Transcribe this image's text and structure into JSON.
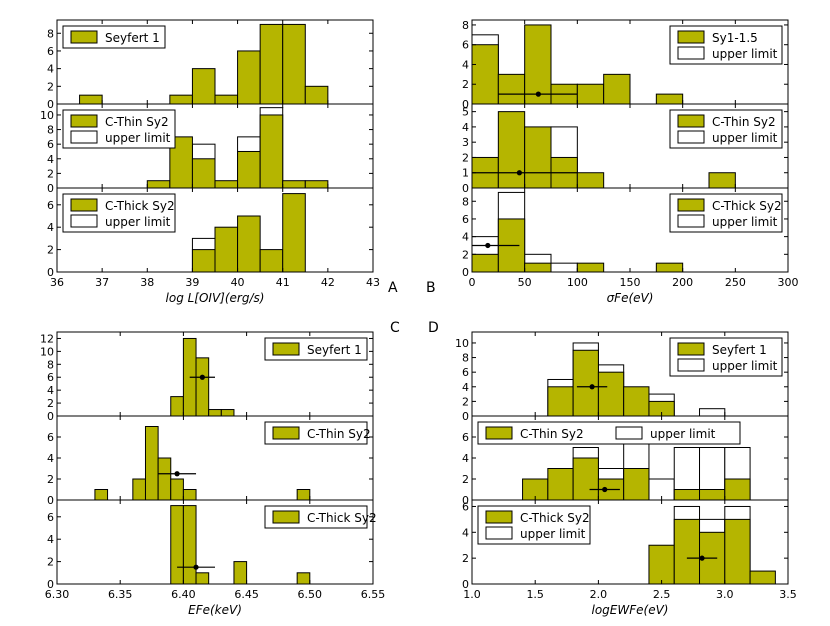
{
  "colors": {
    "fill": "#b5b500",
    "edge": "#000000",
    "upper": "#ffffff"
  },
  "panel_labels": [
    "A",
    "B",
    "C",
    "D"
  ],
  "chart_data": [
    {
      "id": "A",
      "type": "bar",
      "xlim": [
        36,
        43
      ],
      "xticks": [
        "36",
        "37",
        "38",
        "39",
        "40",
        "41",
        "42",
        "43"
      ],
      "xlabel": "log L[OIV](erg/s)",
      "subplots": [
        {
          "legend": [
            "Seyfert 1"
          ],
          "legend_pos": "top-left",
          "ylim": [
            0,
            9.5
          ],
          "yticks": [
            0,
            2,
            4,
            6,
            8
          ],
          "bins": [
            [
              36.5,
              37
            ],
            [
              37,
              37.5
            ],
            [
              37.5,
              38
            ],
            [
              38,
              38.5
            ],
            [
              38.5,
              39
            ],
            [
              39,
              39.5
            ],
            [
              39.5,
              40
            ],
            [
              40,
              40.5
            ],
            [
              40.5,
              41
            ],
            [
              41,
              41.5
            ],
            [
              41.5,
              42
            ],
            [
              42,
              42.5
            ]
          ],
          "values": [
            1,
            0,
            0,
            0,
            1,
            4,
            1,
            6,
            9,
            9,
            2,
            0
          ],
          "upper": [
            1,
            0,
            0,
            0,
            1,
            4,
            1,
            6,
            9,
            9,
            2,
            0
          ]
        },
        {
          "legend": [
            "C-Thin Sy2",
            "upper limit"
          ],
          "legend_pos": "top-left",
          "ylim": [
            0,
            11.5
          ],
          "yticks": [
            0,
            2,
            4,
            6,
            8,
            10
          ],
          "bins": [
            [
              36.5,
              37
            ],
            [
              37,
              37.5
            ],
            [
              37.5,
              38
            ],
            [
              38,
              38.5
            ],
            [
              38.5,
              39
            ],
            [
              39,
              39.5
            ],
            [
              39.5,
              40
            ],
            [
              40,
              40.5
            ],
            [
              40.5,
              41
            ],
            [
              41,
              41.5
            ],
            [
              41.5,
              42
            ],
            [
              42,
              42.5
            ]
          ],
          "values": [
            0,
            0,
            0,
            1,
            7,
            4,
            1,
            5,
            10,
            1,
            1,
            0
          ],
          "upper": [
            0,
            0,
            0,
            1,
            7,
            6,
            1,
            7,
            11,
            1,
            1,
            0
          ]
        },
        {
          "legend": [
            "C-Thick Sy2",
            "upper limit"
          ],
          "legend_pos": "top-left",
          "ylim": [
            0,
            7.5
          ],
          "yticks": [
            0,
            2,
            4,
            6
          ],
          "bins": [
            [
              39,
              39.5
            ],
            [
              39.5,
              40
            ],
            [
              40,
              40.5
            ],
            [
              40.5,
              41
            ],
            [
              41,
              41.5
            ],
            [
              41.5,
              42
            ]
          ],
          "values": [
            2,
            4,
            5,
            2,
            7,
            0
          ],
          "upper": [
            3,
            4,
            5,
            2,
            7,
            0
          ]
        }
      ]
    },
    {
      "id": "B",
      "type": "bar",
      "xlim": [
        0,
        300
      ],
      "xticks": [
        "0",
        "50",
        "100",
        "150",
        "200",
        "250",
        "300"
      ],
      "xlabel": "σFe(eV)",
      "subplots": [
        {
          "legend": [
            "Sy1-1.5",
            "upper limit"
          ],
          "legend_pos": "top-right",
          "ylim": [
            0,
            8.5
          ],
          "yticks": [
            0,
            2,
            4,
            6,
            8
          ],
          "bins": [
            [
              0,
              25
            ],
            [
              25,
              50
            ],
            [
              50,
              75
            ],
            [
              75,
              100
            ],
            [
              100,
              125
            ],
            [
              125,
              150
            ],
            [
              150,
              175
            ],
            [
              175,
              200
            ],
            [
              200,
              225
            ],
            [
              225,
              250
            ]
          ],
          "values": [
            6,
            3,
            8,
            2,
            2,
            3,
            0,
            1,
            0,
            0
          ],
          "upper": [
            7,
            3,
            8,
            2,
            2,
            3,
            0,
            1,
            0,
            0
          ],
          "errorbar": {
            "x": 63,
            "y": 1,
            "xerr": [
              25,
              100
            ]
          }
        },
        {
          "legend": [
            "C-Thin Sy2",
            "upper limit"
          ],
          "legend_pos": "top-right",
          "ylim": [
            0,
            5.5
          ],
          "yticks": [
            0,
            1,
            2,
            3,
            4,
            5
          ],
          "bins": [
            [
              0,
              25
            ],
            [
              25,
              50
            ],
            [
              50,
              75
            ],
            [
              75,
              100
            ],
            [
              100,
              125
            ],
            [
              125,
              150
            ],
            [
              150,
              175
            ],
            [
              175,
              200
            ],
            [
              200,
              225
            ],
            [
              225,
              250
            ],
            [
              250,
              275
            ]
          ],
          "values": [
            2,
            5,
            4,
            2,
            1,
            0,
            0,
            0,
            0,
            1,
            0
          ],
          "upper": [
            2,
            5,
            4,
            4,
            1,
            0,
            0,
            0,
            0,
            1,
            0
          ],
          "errorbar": {
            "x": 45,
            "y": 1,
            "xerr": [
              0,
              100
            ]
          }
        },
        {
          "legend": [
            "C-Thick Sy2",
            "upper limit"
          ],
          "legend_pos": "top-right",
          "ylim": [
            0,
            9.5
          ],
          "yticks": [
            0,
            2,
            4,
            6,
            8
          ],
          "bins": [
            [
              0,
              25
            ],
            [
              25,
              50
            ],
            [
              50,
              75
            ],
            [
              75,
              100
            ],
            [
              100,
              125
            ],
            [
              125,
              150
            ],
            [
              150,
              175
            ],
            [
              175,
              200
            ],
            [
              200,
              225
            ],
            [
              225,
              250
            ],
            [
              250,
              275
            ]
          ],
          "values": [
            2,
            6,
            1,
            0,
            1,
            0,
            0,
            1,
            0,
            0,
            0
          ],
          "upper": [
            4,
            9,
            2,
            1,
            1,
            0,
            0,
            1,
            0,
            0,
            0
          ],
          "errorbar": {
            "x": 15,
            "y": 3,
            "xerr": [
              0,
              45
            ]
          }
        }
      ]
    },
    {
      "id": "C",
      "type": "bar",
      "xlim": [
        6.3,
        6.55
      ],
      "xticks": [
        "6.30",
        "6.35",
        "6.40",
        "6.45",
        "6.50",
        "6.55"
      ],
      "xlabel": "EFe(keV)",
      "subplots": [
        {
          "legend": [
            "Seyfert 1"
          ],
          "legend_pos": "top-right",
          "ylim": [
            0,
            13
          ],
          "yticks": [
            0,
            2,
            4,
            6,
            8,
            10,
            12
          ],
          "bins": [
            [
              6.39,
              6.4
            ],
            [
              6.4,
              6.41
            ],
            [
              6.41,
              6.42
            ],
            [
              6.42,
              6.43
            ],
            [
              6.43,
              6.44
            ],
            [
              6.44,
              6.45
            ],
            [
              6.45,
              6.46
            ]
          ],
          "values": [
            3,
            12,
            9,
            1,
            1,
            0,
            0
          ],
          "upper": [
            3,
            12,
            9,
            1,
            1,
            0,
            0
          ],
          "errorbar": {
            "x": 6.415,
            "y": 6,
            "xerr": [
              6.405,
              6.425
            ]
          }
        },
        {
          "legend": [
            "C-Thin Sy2"
          ],
          "legend_pos": "top-right",
          "ylim": [
            0,
            8
          ],
          "yticks": [
            0,
            2,
            4,
            6
          ],
          "bins": [
            [
              6.32,
              6.33
            ],
            [
              6.33,
              6.34
            ],
            [
              6.34,
              6.35
            ],
            [
              6.35,
              6.36
            ],
            [
              6.36,
              6.37
            ],
            [
              6.37,
              6.38
            ],
            [
              6.38,
              6.39
            ],
            [
              6.39,
              6.4
            ],
            [
              6.4,
              6.41
            ],
            [
              6.41,
              6.42
            ],
            [
              6.42,
              6.43
            ],
            [
              6.43,
              6.44
            ],
            [
              6.44,
              6.45
            ],
            [
              6.45,
              6.46
            ],
            [
              6.46,
              6.47
            ],
            [
              6.47,
              6.48
            ],
            [
              6.48,
              6.49
            ],
            [
              6.49,
              6.5
            ]
          ],
          "values": [
            0,
            1,
            0,
            0,
            2,
            7,
            4,
            2,
            1,
            0,
            0,
            0,
            0,
            0,
            0,
            0,
            0,
            1
          ],
          "upper": [
            0,
            1,
            0,
            0,
            2,
            7,
            4,
            2,
            1,
            0,
            0,
            0,
            0,
            0,
            0,
            0,
            0,
            1
          ],
          "errorbar": {
            "x": 6.395,
            "y": 2.5,
            "xerr": [
              6.38,
              6.41
            ]
          }
        },
        {
          "legend": [
            "C-Thick Sy2"
          ],
          "legend_pos": "top-right",
          "ylim": [
            0,
            7.5
          ],
          "yticks": [
            0,
            2,
            4,
            6
          ],
          "bins": [
            [
              6.39,
              6.4
            ],
            [
              6.4,
              6.41
            ],
            [
              6.41,
              6.42
            ],
            [
              6.42,
              6.43
            ],
            [
              6.43,
              6.44
            ],
            [
              6.44,
              6.45
            ],
            [
              6.45,
              6.46
            ],
            [
              6.46,
              6.47
            ],
            [
              6.47,
              6.48
            ],
            [
              6.48,
              6.49
            ],
            [
              6.49,
              6.5
            ]
          ],
          "values": [
            7,
            7,
            1,
            0,
            0,
            2,
            0,
            0,
            0,
            0,
            1
          ],
          "upper": [
            7,
            7,
            1,
            0,
            0,
            2,
            0,
            0,
            0,
            0,
            1
          ],
          "errorbar": {
            "x": 6.41,
            "y": 1.5,
            "xerr": [
              6.395,
              6.425
            ]
          }
        }
      ]
    },
    {
      "id": "D",
      "type": "bar",
      "xlim": [
        1.0,
        3.5
      ],
      "xticks": [
        "1.0",
        "1.5",
        "2.0",
        "2.5",
        "3.0",
        "3.5"
      ],
      "xlabel": "logEWFe(eV)",
      "subplots": [
        {
          "legend": [
            "Seyfert 1",
            "upper limit"
          ],
          "legend_pos": "top-right",
          "ylim": [
            0,
            11.5
          ],
          "yticks": [
            0,
            2,
            4,
            6,
            8,
            10
          ],
          "bins": [
            [
              1.6,
              1.8
            ],
            [
              1.8,
              2.0
            ],
            [
              2.0,
              2.2
            ],
            [
              2.2,
              2.4
            ],
            [
              2.4,
              2.6
            ],
            [
              2.6,
              2.8
            ],
            [
              2.8,
              3.0
            ],
            [
              3.0,
              3.2
            ]
          ],
          "values": [
            4,
            9,
            6,
            4,
            2,
            0,
            0,
            0
          ],
          "upper": [
            5,
            10,
            7,
            4,
            3,
            0,
            1,
            0
          ],
          "errorbar": {
            "x": 1.95,
            "y": 4,
            "xerr": [
              1.83,
              2.07
            ]
          }
        },
        {
          "legend": [
            "C-Thin Sy2",
            "upper limit"
          ],
          "legend_pos": "top-left",
          "ylim": [
            0,
            8
          ],
          "yticks": [
            0,
            2,
            4,
            6
          ],
          "bins": [
            [
              1.4,
              1.6
            ],
            [
              1.6,
              1.8
            ],
            [
              1.8,
              2.0
            ],
            [
              2.0,
              2.2
            ],
            [
              2.2,
              2.4
            ],
            [
              2.4,
              2.6
            ],
            [
              2.6,
              2.8
            ],
            [
              2.8,
              3.0
            ],
            [
              3.0,
              3.2
            ]
          ],
          "values": [
            2,
            3,
            4,
            2,
            3,
            0,
            1,
            1,
            2
          ],
          "upper": [
            2,
            3,
            5,
            3,
            6,
            2,
            5,
            5,
            5
          ],
          "errorbar": {
            "x": 2.05,
            "y": 1,
            "xerr": [
              1.93,
              2.17
            ]
          }
        },
        {
          "legend": [
            "C-Thick Sy2",
            "upper limit"
          ],
          "legend_pos": "top-left",
          "ylim": [
            0,
            6.5
          ],
          "yticks": [
            0,
            2,
            4,
            6
          ],
          "bins": [
            [
              2.4,
              2.6
            ],
            [
              2.6,
              2.8
            ],
            [
              2.8,
              3.0
            ],
            [
              3.0,
              3.2
            ],
            [
              3.2,
              3.4
            ]
          ],
          "values": [
            3,
            5,
            4,
            5,
            1
          ],
          "upper": [
            3,
            6,
            5,
            6,
            1
          ],
          "errorbar": {
            "x": 2.82,
            "y": 2,
            "xerr": [
              2.7,
              2.94
            ]
          }
        }
      ]
    }
  ]
}
